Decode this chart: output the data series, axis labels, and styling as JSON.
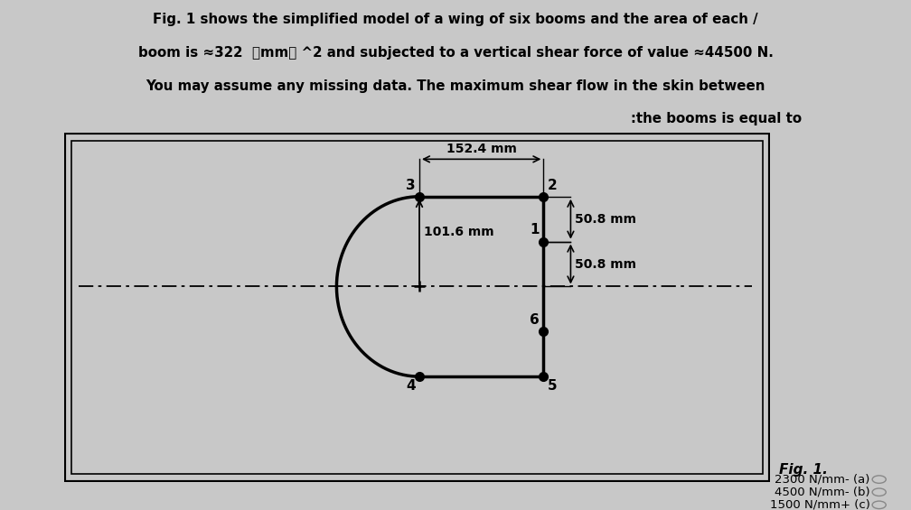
{
  "bg_color": "#c8c8c8",
  "title_lines": [
    "Fig. 1 shows the simplified model of a wing of six booms and the area of each /",
    "boom is ≈322  【mm】 ^2 and subjected to a vertical shear force of value ≈44500 N.",
    "You may assume any missing data. The maximum shear flow in the skin between",
    ":the booms is equal to"
  ],
  "dim_152": "152.4 mm",
  "dim_50_8_top": "50.8 mm",
  "dim_50_8_bot": "50.8 mm",
  "dim_101_6": "101.6 mm",
  "answer_options": [
    "2300 N/mm- (a)",
    "4500 N/mm- (b)",
    "1500 N/mm+ (c)"
  ],
  "fig_label": "Fig. 1."
}
